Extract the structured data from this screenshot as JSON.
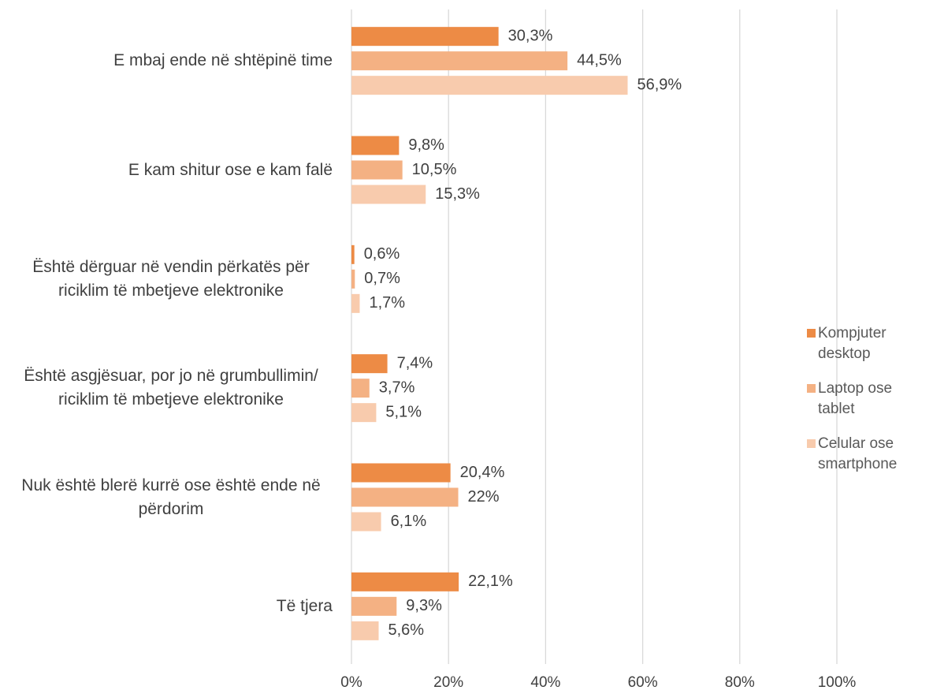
{
  "chart_data": {
    "type": "bar",
    "orientation": "horizontal",
    "categories": [
      "E mbaj ende në shtëpinë time",
      "E kam shitur ose e kam falë",
      "Është dërguar në vendin përkatës për riciklim të mbetjeve elektronike",
      "Është asgjësuar, por jo në grumbullimin/ riciklim të mbetjeve elektronike",
      "Nuk është blerë kurrë ose është ende në përdorim",
      "Të tjera"
    ],
    "series": [
      {
        "name": "Kompjuter desktop",
        "color": "#ed8b45",
        "values": [
          30.3,
          9.8,
          0.6,
          7.4,
          20.4,
          22.1
        ],
        "value_labels": [
          "30,3%",
          "9,8%",
          "0,6%",
          "7,4%",
          "20,4%",
          "22,1%"
        ]
      },
      {
        "name": "Laptop ose tablet",
        "color": "#f4b183",
        "values": [
          44.5,
          10.5,
          0.7,
          3.7,
          22,
          9.3
        ],
        "value_labels": [
          "44,5%",
          "10,5%",
          "0,7%",
          "3,7%",
          "22%",
          "9,3%"
        ]
      },
      {
        "name": "Celular ose smartphone",
        "color": "#f8cbad",
        "values": [
          56.9,
          15.3,
          1.7,
          5.1,
          6.1,
          5.6
        ],
        "value_labels": [
          "56,9%",
          "15,3%",
          "1,7%",
          "5,1%",
          "6,1%",
          "5,6%"
        ]
      }
    ],
    "xlim": [
      0,
      100
    ],
    "xticks": [
      {
        "value": 0,
        "label": "0%"
      },
      {
        "value": 20,
        "label": "20%"
      },
      {
        "value": 40,
        "label": "40%"
      },
      {
        "value": 60,
        "label": "60%"
      },
      {
        "value": 80,
        "label": "80%"
      },
      {
        "value": 100,
        "label": "100%"
      }
    ],
    "grid": true,
    "legend": "right"
  }
}
